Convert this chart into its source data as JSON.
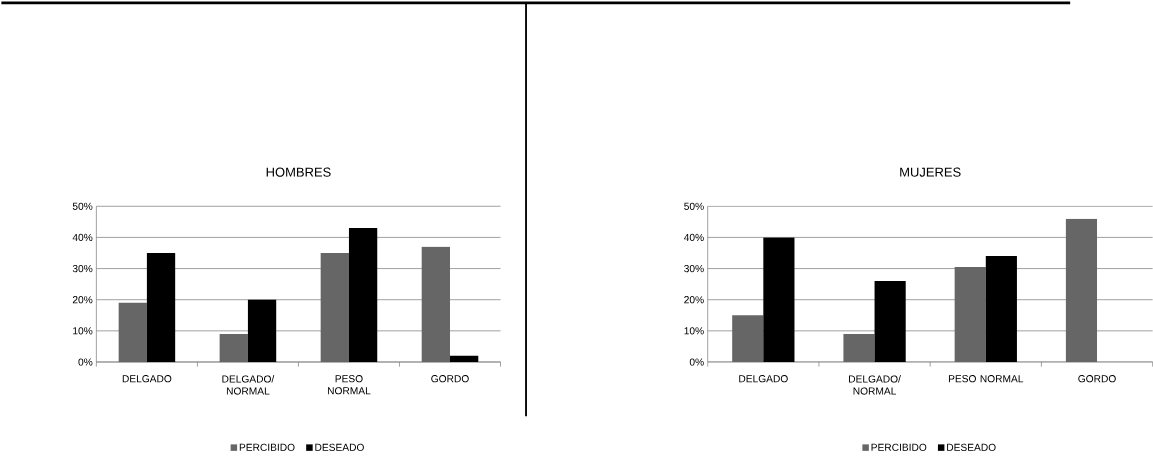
{
  "chart_data": [
    {
      "type": "bar",
      "title": "HOMBRES",
      "categories": [
        "DELGADO",
        "DELGADO/ NORMAL",
        "PESO NORMAL",
        "GORDO"
      ],
      "series": [
        {
          "name": "PERCIBIDO",
          "color": "#666666",
          "values": [
            19,
            9,
            35,
            37
          ]
        },
        {
          "name": "DESEADO",
          "color": "#000000",
          "values": [
            35,
            20,
            43,
            2
          ]
        }
      ],
      "ylim": [
        0,
        50
      ],
      "yticks": [
        {
          "value": 0,
          "label": "0%"
        },
        {
          "value": 10,
          "label": "10%"
        },
        {
          "value": 20,
          "label": "20%"
        },
        {
          "value": 30,
          "label": "30%"
        },
        {
          "value": 40,
          "label": "40%"
        },
        {
          "value": 50,
          "label": "50%"
        }
      ],
      "grid": "y",
      "legend": "bottom"
    },
    {
      "type": "bar",
      "title": "MUJERES",
      "categories": [
        "DELGADO",
        "DELGADO/ NORMAL",
        "PESO NORMAL",
        "GORDO"
      ],
      "series": [
        {
          "name": "PERCIBIDO",
          "color": "#666666",
          "values": [
            15,
            9,
            30.5,
            46
          ]
        },
        {
          "name": "DESEADO",
          "color": "#000000",
          "values": [
            40,
            26,
            34,
            0
          ]
        }
      ],
      "ylim": [
        0,
        50
      ],
      "yticks": [
        {
          "value": 0,
          "label": "0%"
        },
        {
          "value": 10,
          "label": "10%"
        },
        {
          "value": 20,
          "label": "20%"
        },
        {
          "value": 30,
          "label": "30%"
        },
        {
          "value": 40,
          "label": "40%"
        },
        {
          "value": 50,
          "label": "50%"
        }
      ],
      "grid": "y",
      "legend": "bottom"
    }
  ]
}
